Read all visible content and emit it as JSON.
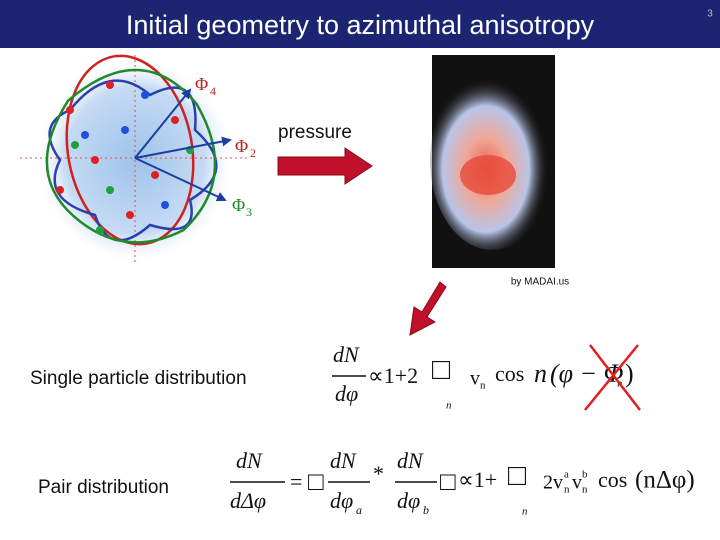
{
  "header": {
    "title": "Initial geometry to azimuthal anisotropy",
    "page_number": "3"
  },
  "figure": {
    "plane_labels": [
      {
        "symbol": "Φ",
        "index": "4"
      },
      {
        "symbol": "Φ",
        "index": "2"
      },
      {
        "symbol": "Φ",
        "index": "3"
      }
    ],
    "arrow_label": "pressure",
    "credit": "by MADAI.us"
  },
  "equations": [
    {
      "label": "Single particle distribution",
      "parts": [
        "dN",
        "dφ",
        "∝1+2",
        "□",
        "n",
        "v",
        "n",
        "cos",
        "n",
        "(φ − Φ",
        "n",
        ")"
      ]
    },
    {
      "label": "Pair distribution",
      "parts": [
        "dN",
        "dΔφ",
        "=",
        "□",
        "dN",
        "dφ",
        "a",
        "*",
        "dN",
        "dφ",
        "b",
        "□",
        "∝1+",
        "□",
        "n",
        "2v",
        "a",
        "n",
        "v",
        "b",
        "n",
        "cos",
        "(nΔφ)"
      ]
    }
  ]
}
